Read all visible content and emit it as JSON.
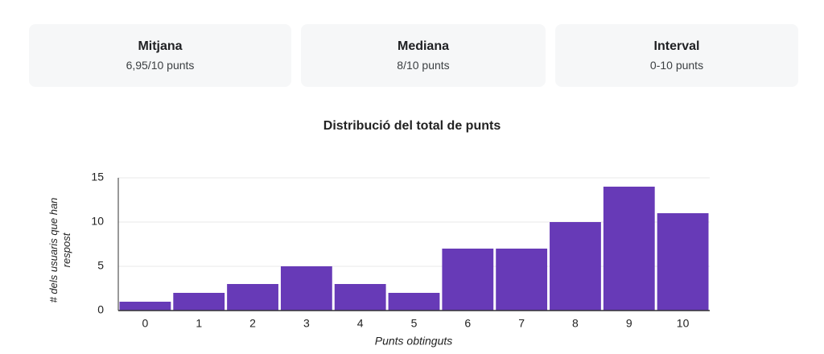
{
  "stats": [
    {
      "label": "Mitjana",
      "value": "6,95/10 punts"
    },
    {
      "label": "Mediana",
      "value": "8/10 punts"
    },
    {
      "label": "Interval",
      "value": "0-10 punts"
    }
  ],
  "chart_data": {
    "type": "bar",
    "title": "Distribució del total de punts",
    "x_label": "Punts obtinguts",
    "y_label": "# dels usuaris que han respost",
    "categories": [
      "0",
      "1",
      "2",
      "3",
      "4",
      "5",
      "6",
      "7",
      "8",
      "9",
      "10"
    ],
    "values": [
      1,
      2,
      3,
      5,
      3,
      2,
      7,
      7,
      10,
      14,
      11
    ],
    "color": "#673ab7",
    "ylim": [
      0,
      15
    ],
    "yticks": [
      0,
      5,
      10,
      15
    ],
    "grid": true
  }
}
